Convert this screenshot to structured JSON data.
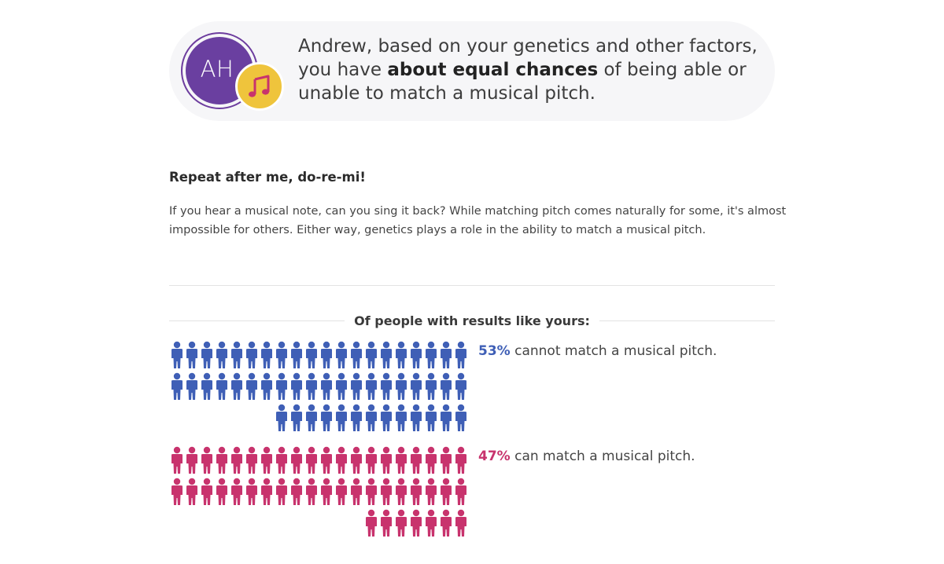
{
  "banner": {
    "avatar_initials": "AH",
    "badge_icon": "music-note-icon",
    "text_before": "Andrew, based on your genetics and other factors, you have ",
    "text_bold": "about equal chances",
    "text_after": " of being able or unable to match a musical pitch."
  },
  "section": {
    "title": "Repeat after me, do-re-mi!",
    "body": "If you hear a musical note, can you sing it back? While matching pitch comes naturally for some, it's almost impossible for others. Either way, genetics plays a role in the ability to match a musical pitch."
  },
  "results": {
    "heading": "Of people with results like yours:",
    "groups": [
      {
        "percent_label": "53%",
        "percent": 53,
        "description": "cannot match a musical pitch.",
        "color": "#3f5fb6",
        "icon": "person-icon"
      },
      {
        "percent_label": "47%",
        "percent": 47,
        "description": "can match a musical pitch.",
        "color": "#c8336d",
        "icon": "person-icon"
      }
    ]
  },
  "colors": {
    "avatar_purple": "#6a3fa0",
    "badge_yellow": "#efc43c",
    "music_note_pink": "#c8336d",
    "banner_bg": "#f6f6f8"
  }
}
